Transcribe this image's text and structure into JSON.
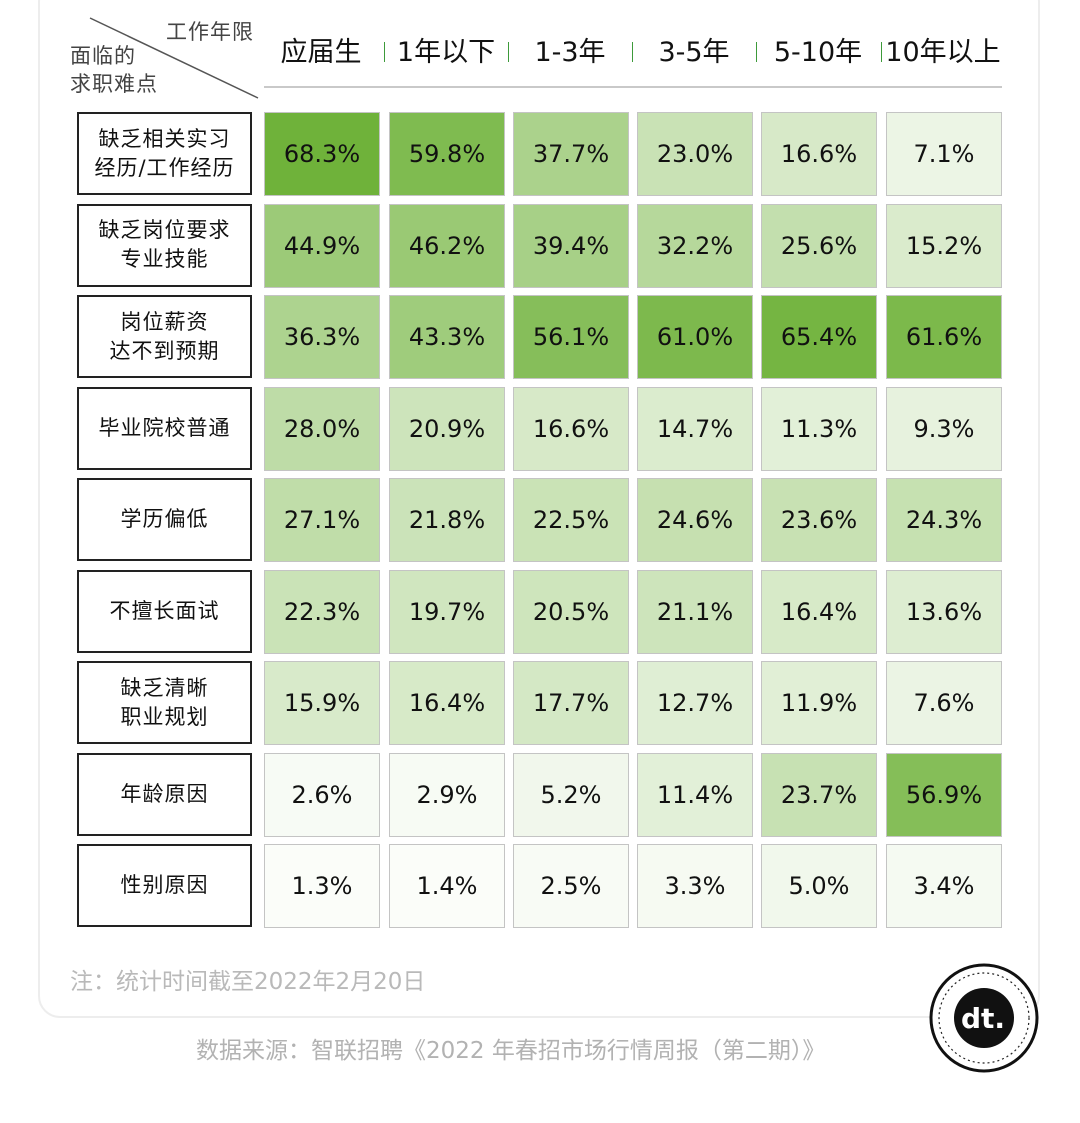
{
  "corner": {
    "top_label": "工作年限",
    "bottom_label": "面临的\n求职难点"
  },
  "chart_data": {
    "type": "heatmap",
    "columns": [
      "应届生",
      "1年以下",
      "1-3年",
      "3-5年",
      "5-10年",
      "10年以上"
    ],
    "rows": [
      {
        "label": "缺乏相关实习\n经历/工作经历",
        "values": [
          "68.3%",
          "59.8%",
          "37.7%",
          "23.0%",
          "16.6%",
          "7.1%"
        ]
      },
      {
        "label": "缺乏岗位要求\n专业技能",
        "values": [
          "44.9%",
          "46.2%",
          "39.4%",
          "32.2%",
          "25.6%",
          "15.2%"
        ]
      },
      {
        "label": "岗位薪资\n达不到预期",
        "values": [
          "36.3%",
          "43.3%",
          "56.1%",
          "61.0%",
          "65.4%",
          "61.6%"
        ]
      },
      {
        "label": "毕业院校普通",
        "values": [
          "28.0%",
          "20.9%",
          "16.6%",
          "14.7%",
          "11.3%",
          "9.3%"
        ]
      },
      {
        "label": "学历偏低",
        "values": [
          "27.1%",
          "21.8%",
          "22.5%",
          "24.6%",
          "23.6%",
          "24.3%"
        ]
      },
      {
        "label": "不擅长面试",
        "values": [
          "22.3%",
          "19.7%",
          "20.5%",
          "21.1%",
          "16.4%",
          "13.6%"
        ]
      },
      {
        "label": "缺乏清晰\n职业规划",
        "values": [
          "15.9%",
          "16.4%",
          "17.7%",
          "12.7%",
          "11.9%",
          "7.6%"
        ]
      },
      {
        "label": "年龄原因",
        "values": [
          "2.6%",
          "2.9%",
          "5.2%",
          "11.4%",
          "23.7%",
          "56.9%"
        ]
      },
      {
        "label": "性别原因",
        "values": [
          "1.3%",
          "1.4%",
          "2.5%",
          "3.3%",
          "5.0%",
          "3.4%"
        ]
      }
    ],
    "color_low": "#ffffff",
    "color_high": "#6fb23a",
    "separator_color": "#3d9a3a"
  },
  "note": "注：统计时间截至2022年2月20日",
  "source": "数据来源：智联招聘《2022 年春招市场行情周报（第二期）》",
  "logo": {
    "icon": "dt-logo-icon",
    "text": "dt."
  }
}
